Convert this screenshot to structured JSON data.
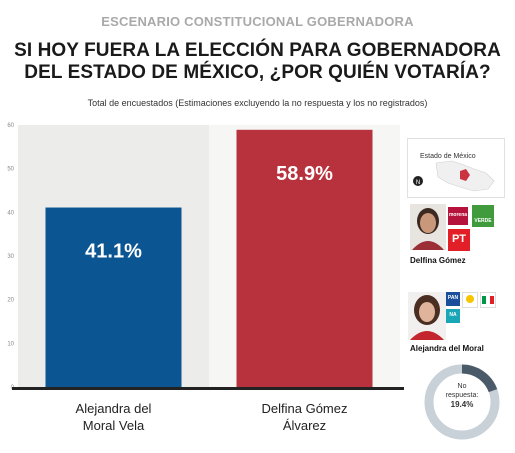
{
  "header": {
    "kicker": "ESCENARIO CONSTITUCIONAL GOBERNADORA",
    "title_line1": "SI HOY FUERA LA ELECCIÓN PARA GOBERNADORA",
    "title_line2": "DEL ESTADO DE MÉXICO, ¿POR QUIÉN VOTARÍA?",
    "subtitle": "Total de encuestados (Estimaciones excluyendo la no respuesta y los no registrados)"
  },
  "chart_data": {
    "type": "bar",
    "categories": [
      "Alejandra del Moral Vela",
      "Delfina Gómez Álvarez"
    ],
    "category_lines": [
      [
        "Alejandra del",
        "Moral Vela"
      ],
      [
        "Delfina Gómez",
        "Álvarez"
      ]
    ],
    "values": [
      41.1,
      58.9
    ],
    "value_labels": [
      "41.1%",
      "58.9%"
    ],
    "colors": [
      "#0a5592",
      "#b8323d"
    ],
    "ylim": [
      0,
      60
    ],
    "yticks": [
      0,
      10,
      20,
      30,
      40,
      50,
      60
    ],
    "grid": false
  },
  "sidebar": {
    "map_label": "Estado de México",
    "candidate1_name": "Delfina Gómez",
    "candidate1_logos": [
      "morena",
      "PT",
      "VERDE"
    ],
    "candidate2_name": "Alejandra del Moral",
    "candidate2_logos": [
      "PAN",
      "PRI",
      "PRD",
      "nueva alianza"
    ],
    "no_response_label_1": "No",
    "no_response_label_2": "respuesta:",
    "no_response_value": "19.4%",
    "no_response_fraction": 0.194
  }
}
